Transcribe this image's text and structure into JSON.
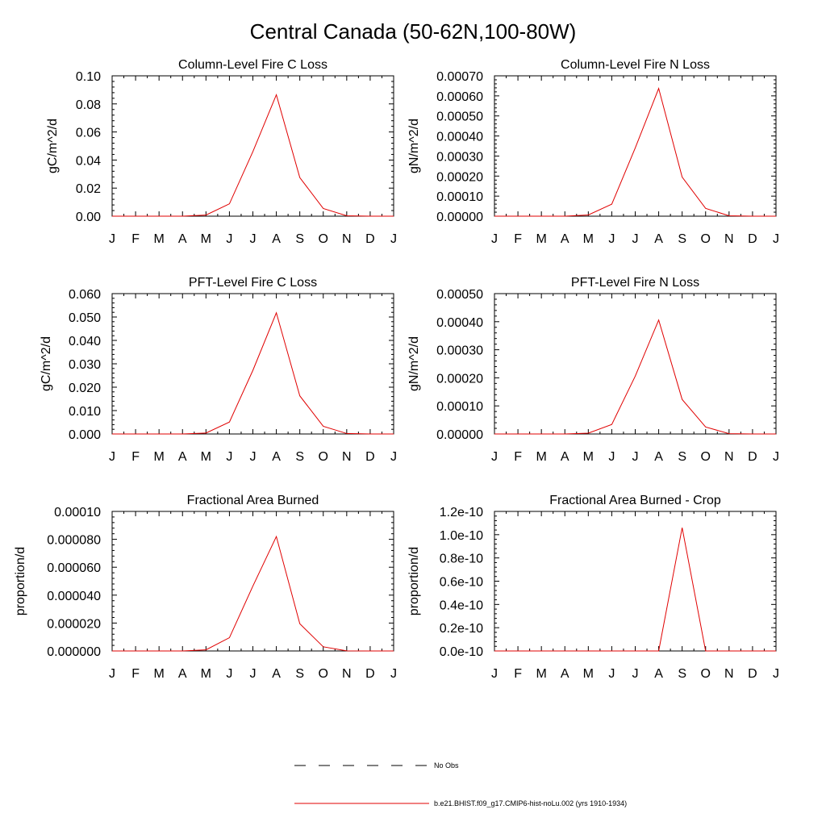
{
  "page": {
    "title": "Central Canada (50-62N,100-80W)"
  },
  "legend": {
    "items": [
      {
        "label": "No Obs",
        "style": "dashed",
        "color": "#000000"
      },
      {
        "label": "b.e21.BHIST.f09_g17.CMIP6-hist-noLu.002 (yrs 1910-1934)",
        "style": "solid",
        "color": "#e00000"
      }
    ]
  },
  "chart_data": [
    {
      "type": "line",
      "title": "Column-Level Fire C Loss",
      "ylabel": "gC/m^2/d",
      "categories": [
        "J",
        "F",
        "M",
        "A",
        "M",
        "J",
        "J",
        "A",
        "S",
        "O",
        "N",
        "D",
        "J"
      ],
      "ylim": [
        0,
        0.1
      ],
      "yticks": [
        "0.00",
        "0.02",
        "0.04",
        "0.06",
        "0.08",
        "0.10"
      ],
      "series": [
        {
          "color": "#e00000",
          "values": [
            0,
            0,
            0,
            0,
            0.0008,
            0.0088,
            0.046,
            0.0865,
            0.0275,
            0.0055,
            0.0003,
            0,
            0
          ]
        }
      ]
    },
    {
      "type": "line",
      "title": "Column-Level Fire N Loss",
      "ylabel": "gN/m^2/d",
      "categories": [
        "J",
        "F",
        "M",
        "A",
        "M",
        "J",
        "J",
        "A",
        "S",
        "O",
        "N",
        "D",
        "J"
      ],
      "ylim": [
        0,
        0.0007
      ],
      "yticks": [
        "0.00000",
        "0.00010",
        "0.00020",
        "0.00030",
        "0.00040",
        "0.00050",
        "0.00060",
        "0.00070"
      ],
      "series": [
        {
          "color": "#e00000",
          "values": [
            0,
            0,
            0,
            0,
            6e-06,
            6e-05,
            0.00034,
            0.000637,
            0.000195,
            3.9e-05,
            2e-06,
            0,
            0
          ]
        }
      ]
    },
    {
      "type": "line",
      "title": "PFT-Level Fire C Loss",
      "ylabel": "gC/m^2/d",
      "categories": [
        "J",
        "F",
        "M",
        "A",
        "M",
        "J",
        "J",
        "A",
        "S",
        "O",
        "N",
        "D",
        "J"
      ],
      "ylim": [
        0,
        0.06
      ],
      "yticks": [
        "0.000",
        "0.010",
        "0.020",
        "0.030",
        "0.040",
        "0.050",
        "0.060"
      ],
      "series": [
        {
          "color": "#e00000",
          "values": [
            0,
            0,
            0,
            0,
            0.0004,
            0.0051,
            0.0272,
            0.0518,
            0.0163,
            0.0033,
            0.0002,
            0,
            0
          ]
        }
      ]
    },
    {
      "type": "line",
      "title": "PFT-Level Fire N Loss",
      "ylabel": "gN/m^2/d",
      "categories": [
        "J",
        "F",
        "M",
        "A",
        "M",
        "J",
        "J",
        "A",
        "S",
        "O",
        "N",
        "D",
        "J"
      ],
      "ylim": [
        0,
        0.0005
      ],
      "yticks": [
        "0.00000",
        "0.00010",
        "0.00020",
        "0.00030",
        "0.00040",
        "0.00050"
      ],
      "series": [
        {
          "color": "#e00000",
          "values": [
            0,
            0,
            0,
            0,
            3e-06,
            3.4e-05,
            0.000206,
            0.000406,
            0.000123,
            2.5e-05,
            1e-06,
            0,
            0
          ]
        }
      ]
    },
    {
      "type": "line",
      "title": "Fractional Area Burned",
      "ylabel": "proportion/d",
      "categories": [
        "J",
        "F",
        "M",
        "A",
        "M",
        "J",
        "J",
        "A",
        "S",
        "O",
        "N",
        "D",
        "J"
      ],
      "ylim": [
        0,
        0.0001
      ],
      "yticks": [
        "0.000000",
        "0.000020",
        "0.000040",
        "0.000060",
        "0.000080",
        "0.00010"
      ],
      "series": [
        {
          "color": "#e00000",
          "values": [
            0,
            0,
            0,
            0,
            8e-07,
            9.5e-06,
            4.65e-05,
            8.2e-05,
            1.95e-05,
            3e-06,
            1e-07,
            0,
            0
          ]
        }
      ]
    },
    {
      "type": "line",
      "title": "Fractional Area Burned - Crop",
      "ylabel": "proportion/d",
      "categories": [
        "J",
        "F",
        "M",
        "A",
        "M",
        "J",
        "J",
        "A",
        "S",
        "O",
        "N",
        "D",
        "J"
      ],
      "ylim": [
        0,
        1.2e-10
      ],
      "yticks": [
        "0.0e-10",
        "0.2e-10",
        "0.4e-10",
        "0.6e-10",
        "0.8e-10",
        "1.0e-10",
        "1.2e-10"
      ],
      "series": [
        {
          "color": "#e00000",
          "values": [
            0,
            0,
            0,
            0,
            0,
            0,
            0,
            0,
            1.06e-10,
            0,
            0,
            0,
            0
          ]
        }
      ]
    }
  ]
}
